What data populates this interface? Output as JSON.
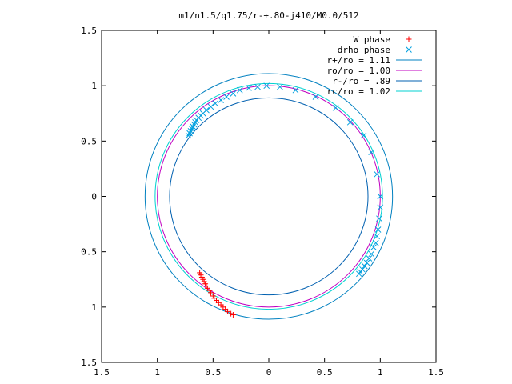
{
  "chart_data": {
    "type": "scatter",
    "title": "m1/n1.5/q1.75/r-+.80-j410/M0.0/512",
    "xlim": [
      -1.5,
      1.5
    ],
    "ylim": [
      -1.5,
      1.5
    ],
    "xticks": [
      -1.5,
      -1,
      -0.5,
      0,
      0.5,
      1,
      1.5
    ],
    "yticks": [
      -1.5,
      -1,
      -0.5,
      0,
      0.5,
      1,
      1.5
    ],
    "xtick_labels": [
      "1.5",
      "1",
      "0.5",
      "0",
      "0.5",
      "1",
      "1.5"
    ],
    "ytick_labels": [
      "1.5",
      "1",
      "0.5",
      "0",
      "0.5",
      "1",
      "1.5"
    ],
    "grid": false,
    "legend_position": "top-right",
    "series": [
      {
        "name": "W phase",
        "kind": "points",
        "marker": "plus",
        "color": "#ff0000",
        "points": [
          [
            -0.62,
            -0.69
          ],
          [
            -0.61,
            -0.71
          ],
          [
            -0.6,
            -0.73
          ],
          [
            -0.59,
            -0.75
          ],
          [
            -0.58,
            -0.77
          ],
          [
            -0.57,
            -0.79
          ],
          [
            -0.56,
            -0.81
          ],
          [
            -0.55,
            -0.83
          ],
          [
            -0.53,
            -0.85
          ],
          [
            -0.52,
            -0.87
          ],
          [
            -0.5,
            -0.9
          ],
          [
            -0.49,
            -0.92
          ],
          [
            -0.47,
            -0.94
          ],
          [
            -0.45,
            -0.96
          ],
          [
            -0.43,
            -0.98
          ],
          [
            -0.41,
            -1.0
          ],
          [
            -0.39,
            -1.02
          ],
          [
            -0.37,
            -1.04
          ],
          [
            -0.34,
            -1.06
          ],
          [
            -0.32,
            -1.07
          ]
        ]
      },
      {
        "name": "drho phase",
        "kind": "points",
        "marker": "cross",
        "color": "#00a0e0",
        "points": [
          [
            -0.72,
            0.55
          ],
          [
            -0.71,
            0.57
          ],
          [
            -0.7,
            0.59
          ],
          [
            -0.69,
            0.61
          ],
          [
            -0.68,
            0.63
          ],
          [
            -0.67,
            0.65
          ],
          [
            -0.66,
            0.67
          ],
          [
            -0.65,
            0.69
          ],
          [
            -0.63,
            0.71
          ],
          [
            -0.61,
            0.73
          ],
          [
            -0.59,
            0.75
          ],
          [
            -0.56,
            0.78
          ],
          [
            -0.52,
            0.81
          ],
          [
            -0.48,
            0.84
          ],
          [
            -0.43,
            0.87
          ],
          [
            -0.38,
            0.9
          ],
          [
            -0.32,
            0.93
          ],
          [
            -0.26,
            0.96
          ],
          [
            -0.18,
            0.98
          ],
          [
            -0.1,
            0.99
          ],
          [
            -0.02,
            1.0
          ],
          [
            0.1,
            0.99
          ],
          [
            0.24,
            0.96
          ],
          [
            0.42,
            0.9
          ],
          [
            0.6,
            0.8
          ],
          [
            0.73,
            0.67
          ],
          [
            0.85,
            0.55
          ],
          [
            0.92,
            0.4
          ],
          [
            0.97,
            0.2
          ],
          [
            1.0,
            0.0
          ],
          [
            1.0,
            -0.1
          ],
          [
            0.99,
            -0.2
          ],
          [
            0.98,
            -0.3
          ],
          [
            0.97,
            -0.36
          ],
          [
            0.96,
            -0.42
          ],
          [
            0.94,
            -0.46
          ],
          [
            0.92,
            -0.52
          ],
          [
            0.9,
            -0.56
          ],
          [
            0.88,
            -0.6
          ],
          [
            0.86,
            -0.63
          ],
          [
            0.84,
            -0.66
          ],
          [
            0.82,
            -0.68
          ],
          [
            0.81,
            -0.7
          ]
        ]
      },
      {
        "name": "r+/ro = 1.11",
        "kind": "circle",
        "radius": 1.11,
        "color": "#0080c0"
      },
      {
        "name": "ro/ro = 1.00",
        "kind": "circle",
        "radius": 1.0,
        "color": "#c000c0"
      },
      {
        "name": "r-/ro = .89",
        "kind": "circle",
        "radius": 0.89,
        "color": "#0060b0"
      },
      {
        "name": "rc/ro = 1.02",
        "kind": "circle",
        "radius": 1.02,
        "color": "#00d0d0"
      }
    ]
  }
}
